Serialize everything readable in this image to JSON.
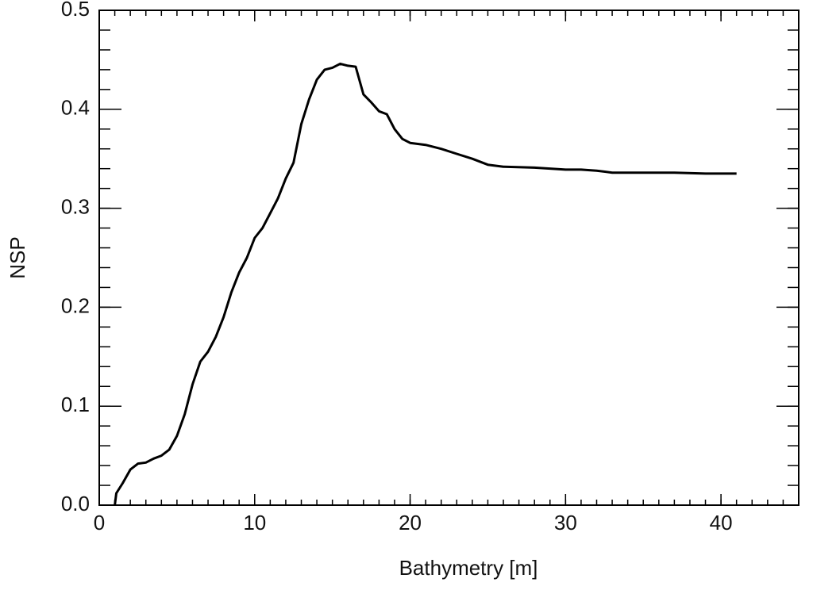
{
  "chart_data": {
    "type": "line",
    "x_label": "Bathymetry [m]",
    "y_label": "NSP",
    "xlim": [
      0,
      45
    ],
    "xticks": [
      0,
      10,
      20,
      30,
      40
    ],
    "ylim": [
      0,
      0.5
    ],
    "yticks": [
      {
        "value": 0,
        "label": "0.0"
      },
      0.1,
      0.2,
      0.3,
      0.4,
      0.5
    ],
    "series": [
      {
        "color": "#000000",
        "x": [
          1.0,
          1.1,
          1.5,
          2,
          2.5,
          3,
          3.5,
          4,
          4.5,
          5,
          5.5,
          6,
          6.5,
          7,
          7.5,
          8,
          8.5,
          9,
          9.5,
          10,
          10.5,
          11,
          11.5,
          12,
          12.5,
          13,
          13.5,
          14,
          14.5,
          15,
          15.5,
          16,
          16.5,
          17,
          17.5,
          18,
          18.5,
          19,
          19.5,
          20,
          21,
          22,
          23,
          24,
          25,
          26,
          28,
          30,
          31,
          32,
          33,
          35,
          37,
          39,
          41
        ],
        "values": [
          0.0,
          0.012,
          0.022,
          0.036,
          0.042,
          0.043,
          0.047,
          0.05,
          0.056,
          0.07,
          0.092,
          0.122,
          0.145,
          0.155,
          0.17,
          0.19,
          0.215,
          0.235,
          0.25,
          0.27,
          0.28,
          0.295,
          0.31,
          0.33,
          0.346,
          0.385,
          0.41,
          0.43,
          0.44,
          0.442,
          0.446,
          0.444,
          0.443,
          0.415,
          0.407,
          0.398,
          0.395,
          0.38,
          0.37,
          0.366,
          0.364,
          0.36,
          0.355,
          0.35,
          0.344,
          0.342,
          0.341,
          0.339,
          0.339,
          0.338,
          0.336,
          0.336,
          0.336,
          0.335,
          0.335
        ]
      }
    ]
  }
}
